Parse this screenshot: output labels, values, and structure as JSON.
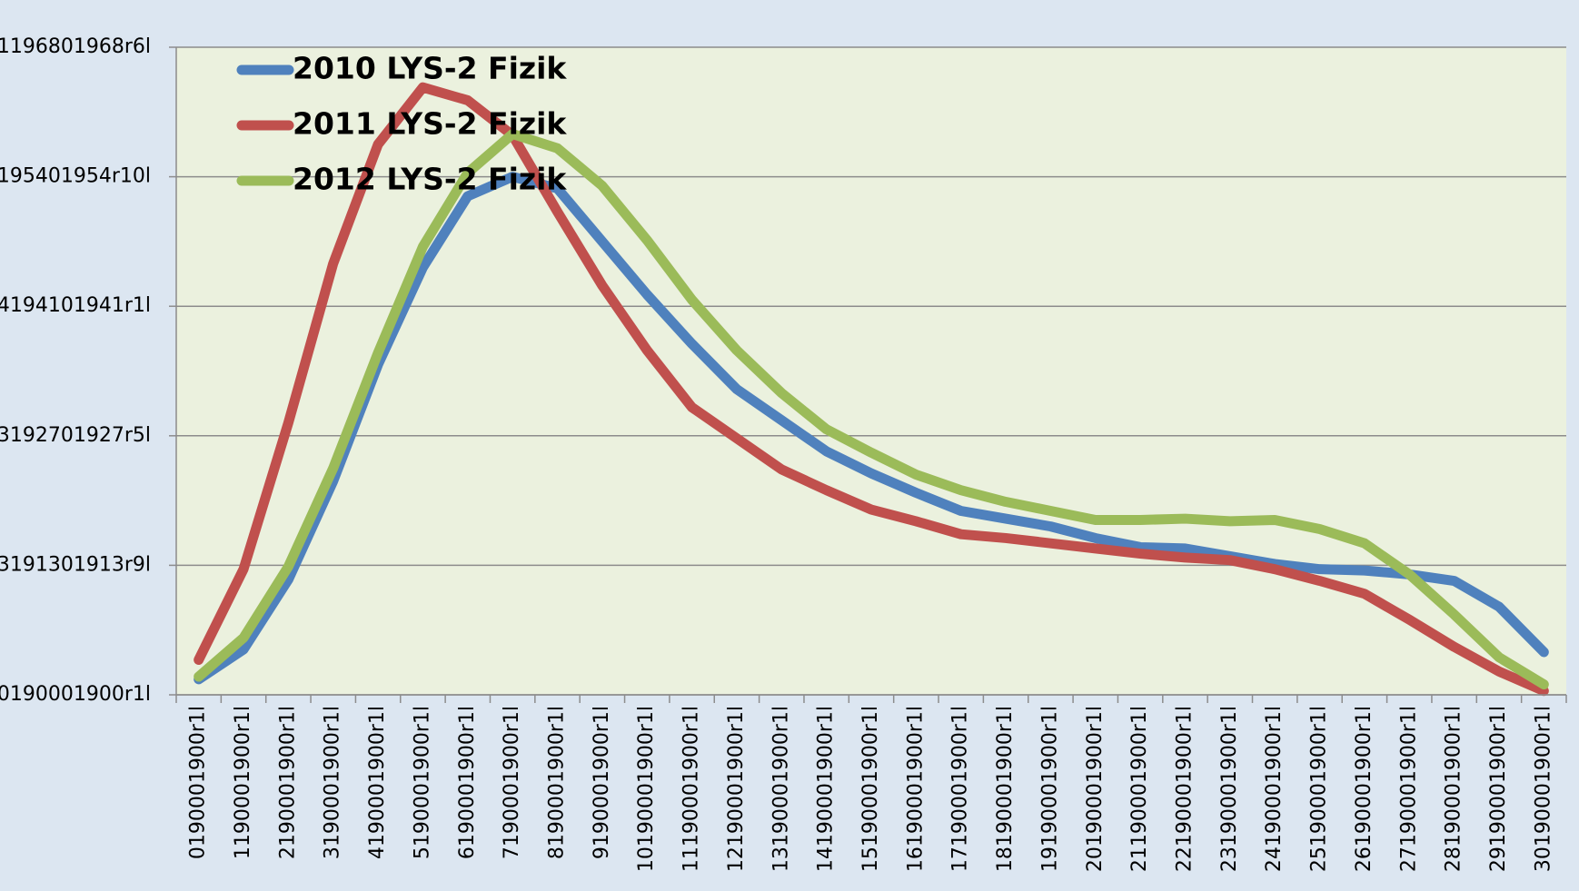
{
  "chart_data": {
    "type": "line",
    "categories": [
      "0190001900r1l",
      "1190001900r1l",
      "2190001900r1l",
      "3190001900r1l",
      "4190001900r1l",
      "5190001900r1l",
      "6190001900r1l",
      "7190001900r1l",
      "8190001900r1l",
      "9190001900r1l",
      "10190001900r1l",
      "11190001900r1l",
      "12190001900r1l",
      "13190001900r1l",
      "14190001900r1l",
      "15190001900r1l",
      "16190001900r1l",
      "17190001900r1l",
      "18190001900r1l",
      "19190001900r1l",
      "20190001900r1l",
      "21190001900r1l",
      "22190001900r1l",
      "23190001900r1l",
      "24190001900r1l",
      "25190001900r1l",
      "26190001900r1l",
      "27190001900r1l",
      "28190001900r1l",
      "29190001900r1l",
      "30190001900r1l"
    ],
    "series": [
      {
        "name": "2010 LYS-2 Fizik",
        "color": "#4f81bd",
        "values": [
          0.12,
          0.35,
          0.89,
          1.65,
          2.55,
          3.3,
          3.85,
          4.0,
          3.91,
          3.5,
          3.09,
          2.71,
          2.36,
          2.12,
          1.88,
          1.71,
          1.56,
          1.42,
          1.36,
          1.3,
          1.21,
          1.14,
          1.13,
          1.07,
          1.01,
          0.97,
          0.96,
          0.93,
          0.88,
          0.68,
          0.33
        ]
      },
      {
        "name": "2011 LYS-2 Fizik",
        "color": "#c0504d",
        "values": [
          0.27,
          0.97,
          2.1,
          3.33,
          4.25,
          4.69,
          4.59,
          4.32,
          3.73,
          3.16,
          2.66,
          2.22,
          1.98,
          1.74,
          1.58,
          1.43,
          1.34,
          1.24,
          1.21,
          1.17,
          1.13,
          1.09,
          1.06,
          1.04,
          0.97,
          0.88,
          0.78,
          0.58,
          0.37,
          0.18,
          0.03
        ]
      },
      {
        "name": "2012 LYS-2 Fizik",
        "color": "#9bbb59",
        "values": [
          0.14,
          0.44,
          0.99,
          1.75,
          2.64,
          3.46,
          4.03,
          4.33,
          4.22,
          3.93,
          3.51,
          3.05,
          2.66,
          2.33,
          2.05,
          1.87,
          1.7,
          1.58,
          1.49,
          1.42,
          1.35,
          1.35,
          1.36,
          1.34,
          1.35,
          1.28,
          1.17,
          0.93,
          0.62,
          0.29,
          0.08
        ]
      }
    ],
    "ylim": [
      0,
      5
    ],
    "yticks": [
      {
        "value": 0,
        "label": "0190001900r1l"
      },
      {
        "value": 1,
        "label": "3191301913r9l"
      },
      {
        "value": 2,
        "label": "3192701927r5l"
      },
      {
        "value": 3,
        "label": "4194101941r1l"
      },
      {
        "value": 4,
        "label": "195401954r10l"
      },
      {
        "value": 5,
        "label": "1196801968r6l"
      }
    ],
    "grid": true
  }
}
